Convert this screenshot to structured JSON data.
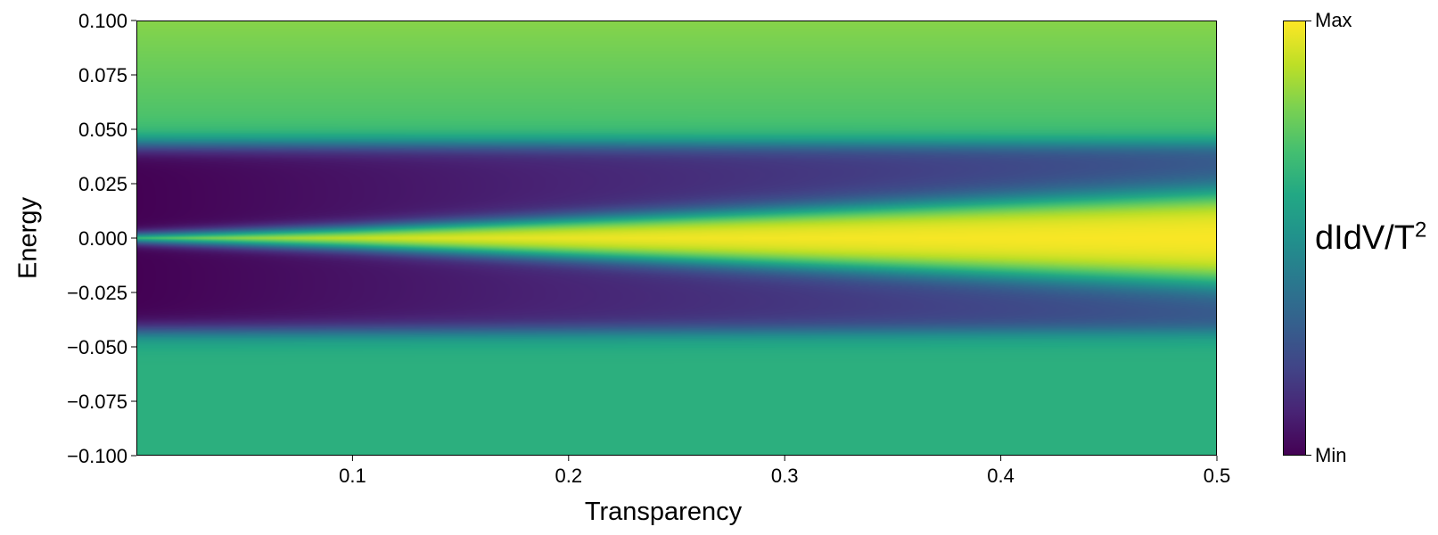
{
  "chart_data": {
    "type": "heatmap",
    "xlabel": "Transparency",
    "ylabel": "Energy",
    "xlim": [
      0.0,
      0.5
    ],
    "ylim": [
      -0.1,
      0.1
    ],
    "x_ticks": [
      "0.1",
      "0.2",
      "0.3",
      "0.4",
      "0.5"
    ],
    "x_tick_values": [
      0.1,
      0.2,
      0.3,
      0.4,
      0.5
    ],
    "y_ticks": [
      "−0.100",
      "−0.075",
      "−0.050",
      "−0.025",
      "0.000",
      "0.025",
      "0.050",
      "0.075",
      "0.100"
    ],
    "y_tick_values": [
      -0.1,
      -0.075,
      -0.05,
      -0.025,
      0.0,
      0.025,
      0.05,
      0.075,
      0.1
    ],
    "colormap": "viridis",
    "colorbar": {
      "title": "dIdV/T",
      "title_superscript": "2",
      "max_label": "Max",
      "min_label": "Min"
    },
    "features": {
      "gap_edge_energy": 0.04,
      "central_peak_half_width_at_x": [
        [
          0.0,
          0.001
        ],
        [
          0.1,
          0.004
        ],
        [
          0.2,
          0.008
        ],
        [
          0.3,
          0.012
        ],
        [
          0.4,
          0.016
        ],
        [
          0.5,
          0.02
        ]
      ],
      "outer_level_top": [
        0.82,
        0.68
      ],
      "outer_level_bottom": 0.63,
      "gap_level_at_x": [
        [
          0.0,
          0.0
        ],
        [
          0.5,
          0.25
        ]
      ]
    },
    "colors": {
      "viridis_min": "#440154",
      "viridis_mid": "#21918c",
      "viridis_max": "#fde725",
      "frame": "#000000"
    }
  }
}
